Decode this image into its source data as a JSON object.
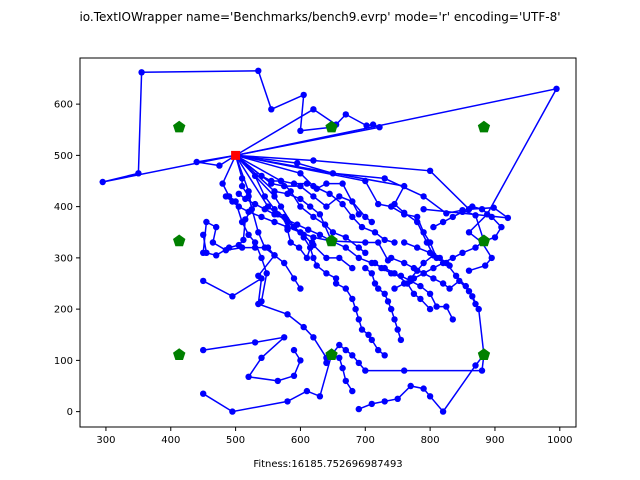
{
  "chart_data": {
    "type": "line",
    "title": "io.TextIOWrapper name='Benchmarks/bench9.evrp' mode='r' encoding='UTF-8'",
    "xlabel": "Fitness:16185.752696987493",
    "ylabel": "",
    "xlim": [
      260,
      1025
    ],
    "ylim": [
      -30,
      690
    ],
    "xticks": [
      300,
      400,
      500,
      600,
      700,
      800,
      900,
      1000
    ],
    "yticks": [
      0,
      100,
      200,
      300,
      400,
      500,
      600
    ],
    "grid": false,
    "colors": {
      "route": "#0000ff",
      "depot": "#ff0000",
      "station": "#008000"
    },
    "depot": [
      500,
      500
    ],
    "stations": [
      [
        413,
        555
      ],
      [
        648,
        555
      ],
      [
        883,
        555
      ],
      [
        413,
        333
      ],
      [
        648,
        333
      ],
      [
        883,
        333
      ],
      [
        413,
        111
      ],
      [
        648,
        111
      ],
      [
        883,
        111
      ]
    ],
    "routes": [
      [
        [
          500,
          500
        ],
        [
          295,
          448
        ],
        [
          350,
          465
        ],
        [
          355,
          662
        ],
        [
          535,
          665
        ],
        [
          555,
          590
        ],
        [
          605,
          618
        ],
        [
          600,
          548
        ],
        [
          648,
          555
        ]
      ],
      [
        [
          500,
          500
        ],
        [
          620,
          590
        ],
        [
          655,
          560
        ],
        [
          670,
          580
        ],
        [
          702,
          558
        ],
        [
          712,
          560
        ],
        [
          722,
          555
        ],
        [
          500,
          500
        ]
      ],
      [
        [
          500,
          500
        ],
        [
          440,
          487
        ],
        [
          475,
          480
        ],
        [
          500,
          500
        ],
        [
          620,
          490
        ],
        [
          800,
          470
        ],
        [
          860,
          395
        ],
        [
          898,
          398
        ],
        [
          920,
          378
        ],
        [
          790,
          395
        ]
      ],
      [
        [
          500,
          500
        ],
        [
          595,
          485
        ],
        [
          650,
          465
        ],
        [
          730,
          455
        ],
        [
          790,
          420
        ],
        [
          825,
          387
        ],
        [
          850,
          393
        ],
        [
          870,
          383
        ],
        [
          883,
          333
        ]
      ],
      [
        [
          500,
          500
        ],
        [
          995,
          630
        ],
        [
          888,
          385
        ],
        [
          860,
          350
        ],
        [
          880,
          330
        ],
        [
          895,
          300
        ],
        [
          885,
          285
        ],
        [
          860,
          275
        ]
      ],
      [
        [
          500,
          500
        ],
        [
          700,
          450
        ],
        [
          720,
          405
        ],
        [
          740,
          400
        ],
        [
          760,
          385
        ],
        [
          780,
          380
        ],
        [
          790,
          350
        ],
        [
          800,
          330
        ],
        [
          810,
          300
        ],
        [
          830,
          285
        ]
      ],
      [
        [
          500,
          500
        ],
        [
          760,
          440
        ],
        [
          745,
          405
        ],
        [
          760,
          388
        ],
        [
          780,
          370
        ],
        [
          795,
          330
        ],
        [
          805,
          305
        ],
        [
          790,
          290
        ],
        [
          780,
          275
        ],
        [
          770,
          260
        ]
      ],
      [
        [
          500,
          500
        ],
        [
          555,
          445
        ],
        [
          575,
          440
        ],
        [
          600,
          440
        ],
        [
          620,
          420
        ],
        [
          640,
          400
        ],
        [
          660,
          420
        ],
        [
          680,
          410
        ],
        [
          700,
          380
        ],
        [
          710,
          370
        ]
      ],
      [
        [
          500,
          500
        ],
        [
          540,
          460
        ],
        [
          555,
          450
        ],
        [
          570,
          450
        ],
        [
          590,
          445
        ],
        [
          610,
          445
        ],
        [
          625,
          435
        ],
        [
          640,
          445
        ],
        [
          665,
          445
        ],
        [
          690,
          385
        ]
      ],
      [
        [
          500,
          500
        ],
        [
          560,
          430
        ],
        [
          580,
          425
        ],
        [
          600,
          415
        ],
        [
          615,
          400
        ],
        [
          630,
          385
        ],
        [
          648,
          333
        ],
        [
          700,
          330
        ],
        [
          720,
          330
        ],
        [
          735,
          295
        ]
      ],
      [
        [
          500,
          500
        ],
        [
          550,
          400
        ],
        [
          565,
          385
        ],
        [
          580,
          370
        ],
        [
          590,
          360
        ],
        [
          605,
          345
        ],
        [
          620,
          325
        ],
        [
          640,
          300
        ],
        [
          660,
          300
        ],
        [
          680,
          280
        ]
      ],
      [
        [
          500,
          500
        ],
        [
          520,
          430
        ],
        [
          525,
          395
        ],
        [
          515,
          375
        ],
        [
          512,
          335
        ],
        [
          505,
          325
        ],
        [
          490,
          320
        ],
        [
          470,
          305
        ],
        [
          455,
          310
        ],
        [
          450,
          345
        ]
      ],
      [
        [
          500,
          500
        ],
        [
          530,
          460
        ],
        [
          545,
          420
        ],
        [
          560,
          395
        ],
        [
          575,
          380
        ],
        [
          580,
          355
        ],
        [
          585,
          330
        ],
        [
          598,
          320
        ],
        [
          610,
          300
        ],
        [
          618,
          330
        ]
      ],
      [
        [
          500,
          500
        ],
        [
          510,
          455
        ],
        [
          510,
          440
        ],
        [
          520,
          420
        ],
        [
          535,
          350
        ],
        [
          545,
          320
        ],
        [
          560,
          305
        ],
        [
          575,
          290
        ],
        [
          590,
          260
        ],
        [
          600,
          240
        ]
      ],
      [
        [
          500,
          500
        ],
        [
          570,
          450
        ],
        [
          585,
          430
        ],
        [
          600,
          400
        ],
        [
          620,
          380
        ],
        [
          638,
          365
        ],
        [
          650,
          350
        ],
        [
          670,
          340
        ],
        [
          690,
          320
        ],
        [
          700,
          310
        ]
      ],
      [
        [
          500,
          500
        ],
        [
          600,
          465
        ],
        [
          620,
          440
        ],
        [
          645,
          425
        ],
        [
          665,
          405
        ],
        [
          680,
          380
        ],
        [
          695,
          360
        ],
        [
          715,
          350
        ],
        [
          730,
          335
        ],
        [
          745,
          330
        ]
      ],
      [
        [
          500,
          500
        ],
        [
          480,
          445
        ],
        [
          490,
          420
        ],
        [
          500,
          410
        ],
        [
          510,
          370
        ],
        [
          520,
          345
        ],
        [
          530,
          330
        ],
        [
          540,
          300
        ],
        [
          548,
          270
        ],
        [
          540,
          215
        ]
      ],
      [
        [
          500,
          500
        ],
        [
          560,
          420
        ],
        [
          570,
          400
        ],
        [
          590,
          360
        ],
        [
          605,
          340
        ],
        [
          615,
          320
        ],
        [
          620,
          300
        ],
        [
          625,
          285
        ],
        [
          640,
          270
        ],
        [
          655,
          260
        ]
      ],
      [
        [
          450,
          310
        ],
        [
          455,
          370
        ],
        [
          470,
          360
        ],
        [
          465,
          330
        ],
        [
          485,
          315
        ],
        [
          510,
          320
        ],
        [
          530,
          320
        ],
        [
          550,
          320
        ],
        [
          560,
          305
        ],
        [
          535,
          265
        ]
      ],
      [
        [
          450,
          255
        ],
        [
          495,
          225
        ],
        [
          540,
          260
        ],
        [
          535,
          210
        ],
        [
          580,
          190
        ],
        [
          605,
          165
        ],
        [
          620,
          145
        ],
        [
          640,
          105
        ],
        [
          648,
          111
        ]
      ],
      [
        [
          450,
          120
        ],
        [
          530,
          135
        ],
        [
          575,
          145
        ],
        [
          540,
          105
        ],
        [
          520,
          68
        ],
        [
          565,
          60
        ],
        [
          590,
          70
        ],
        [
          600,
          100
        ],
        [
          590,
          120
        ]
      ],
      [
        [
          450,
          35
        ],
        [
          495,
          0
        ],
        [
          580,
          20
        ],
        [
          610,
          40
        ],
        [
          630,
          30
        ],
        [
          648,
          111
        ],
        [
          660,
          105
        ],
        [
          665,
          85
        ],
        [
          670,
          60
        ],
        [
          680,
          40
        ]
      ],
      [
        [
          655,
          250
        ],
        [
          670,
          240
        ],
        [
          680,
          220
        ],
        [
          685,
          200
        ],
        [
          690,
          180
        ],
        [
          695,
          160
        ],
        [
          705,
          150
        ],
        [
          710,
          140
        ],
        [
          720,
          120
        ],
        [
          730,
          110
        ]
      ],
      [
        [
          700,
          280
        ],
        [
          710,
          270
        ],
        [
          715,
          250
        ],
        [
          720,
          240
        ],
        [
          730,
          230
        ],
        [
          735,
          215
        ],
        [
          740,
          200
        ],
        [
          745,
          180
        ],
        [
          750,
          160
        ],
        [
          755,
          140
        ]
      ],
      [
        [
          715,
          290
        ],
        [
          725,
          280
        ],
        [
          740,
          270
        ],
        [
          755,
          265
        ],
        [
          770,
          255
        ],
        [
          785,
          245
        ],
        [
          800,
          230
        ],
        [
          810,
          205
        ],
        [
          825,
          205
        ],
        [
          835,
          180
        ]
      ],
      [
        [
          740,
          300
        ],
        [
          760,
          290
        ],
        [
          775,
          280
        ],
        [
          790,
          270
        ],
        [
          805,
          260
        ],
        [
          820,
          250
        ],
        [
          830,
          240
        ],
        [
          845,
          255
        ],
        [
          860,
          235
        ],
        [
          870,
          210
        ]
      ],
      [
        [
          760,
          330
        ],
        [
          780,
          320
        ],
        [
          800,
          310
        ],
        [
          815,
          300
        ],
        [
          825,
          290
        ],
        [
          840,
          265
        ],
        [
          855,
          245
        ],
        [
          865,
          225
        ],
        [
          875,
          200
        ],
        [
          883,
          111
        ]
      ],
      [
        [
          883,
          111
        ],
        [
          880,
          80
        ],
        [
          760,
          80
        ],
        [
          700,
          80
        ],
        [
          690,
          95
        ],
        [
          680,
          110
        ],
        [
          670,
          120
        ],
        [
          660,
          130
        ],
        [
          648,
          111
        ],
        [
          640,
          95
        ]
      ],
      [
        [
          883,
          111
        ],
        [
          870,
          90
        ],
        [
          820,
          0
        ],
        [
          800,
          30
        ],
        [
          790,
          45
        ],
        [
          770,
          50
        ],
        [
          750,
          25
        ],
        [
          730,
          20
        ],
        [
          710,
          15
        ],
        [
          690,
          5
        ]
      ],
      [
        [
          648,
          333
        ],
        [
          620,
          340
        ],
        [
          600,
          350
        ],
        [
          580,
          360
        ],
        [
          560,
          370
        ],
        [
          540,
          380
        ],
        [
          520,
          390
        ],
        [
          505,
          400
        ],
        [
          495,
          410
        ],
        [
          485,
          420
        ]
      ],
      [
        [
          648,
          333
        ],
        [
          670,
          320
        ],
        [
          690,
          300
        ],
        [
          710,
          290
        ],
        [
          730,
          280
        ],
        [
          745,
          270
        ],
        [
          765,
          250
        ],
        [
          775,
          230
        ],
        [
          785,
          220
        ],
        [
          800,
          200
        ]
      ],
      [
        [
          648,
          333
        ],
        [
          630,
          345
        ],
        [
          612,
          355
        ],
        [
          595,
          365
        ],
        [
          578,
          375
        ],
        [
          560,
          385
        ],
        [
          545,
          395
        ],
        [
          530,
          405
        ],
        [
          515,
          415
        ],
        [
          505,
          425
        ]
      ],
      [
        [
          883,
          333
        ],
        [
          900,
          340
        ],
        [
          910,
          360
        ],
        [
          895,
          380
        ],
        [
          880,
          395
        ],
        [
          865,
          400
        ],
        [
          850,
          390
        ],
        [
          835,
          380
        ],
        [
          820,
          370
        ],
        [
          805,
          360
        ]
      ],
      [
        [
          883,
          333
        ],
        [
          870,
          320
        ],
        [
          850,
          310
        ],
        [
          835,
          300
        ],
        [
          820,
          290
        ],
        [
          805,
          280
        ],
        [
          790,
          270
        ],
        [
          775,
          260
        ],
        [
          760,
          250
        ],
        [
          745,
          240
        ]
      ]
    ]
  }
}
